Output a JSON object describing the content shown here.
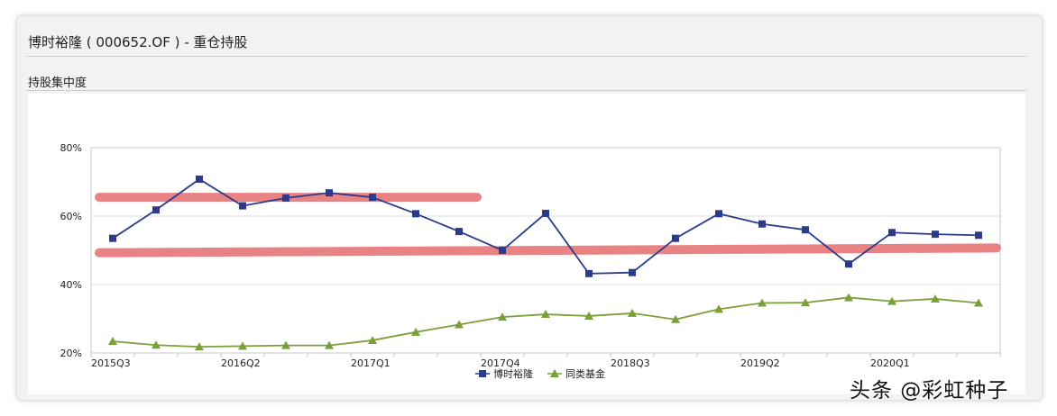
{
  "header": {
    "title": "博时裕隆 ( 000652.OF ) - 重仓持股"
  },
  "section": {
    "title": "持股集中度"
  },
  "watermark": "头条 @彩虹种子",
  "chart_data": {
    "type": "line",
    "x": [
      "2015Q3",
      "2015Q4",
      "2016Q1",
      "2016Q2",
      "2016Q3",
      "2016Q4",
      "2017Q1",
      "2017Q2",
      "2017Q3",
      "2017Q4",
      "2018Q1",
      "2018Q2",
      "2018Q3",
      "2018Q4",
      "2019Q1",
      "2019Q2",
      "2019Q3",
      "2019Q4",
      "2020Q1",
      "2020Q2",
      "2020Q3"
    ],
    "tick_labels": [
      "2015Q3",
      "2016Q2",
      "2017Q1",
      "2017Q4",
      "2018Q3",
      "2019Q2",
      "2020Q1"
    ],
    "y_ticks": [
      "20%",
      "40%",
      "60%",
      "80%"
    ],
    "ylim": [
      20,
      80
    ],
    "series": [
      {
        "name": "博时裕隆",
        "color": "#2b3a8a",
        "marker": "square",
        "values": [
          53.5,
          61.8,
          70.8,
          63.0,
          65.3,
          66.8,
          65.5,
          60.7,
          55.5,
          50.0,
          60.8,
          43.2,
          43.5,
          53.5,
          60.7,
          57.7,
          56.0,
          46.0,
          55.2,
          54.7,
          54.4
        ]
      },
      {
        "name": "同类基金",
        "color": "#7ba03a",
        "marker": "triangle",
        "values": [
          23.4,
          22.3,
          21.8,
          22.0,
          22.2,
          22.2,
          23.7,
          26.1,
          28.3,
          30.5,
          31.3,
          30.8,
          31.6,
          29.8,
          32.8,
          34.6,
          34.7,
          36.2,
          35.1,
          35.8,
          34.6
        ]
      }
    ],
    "annotations": [
      {
        "type": "highlight-bar",
        "color": "#e87878",
        "from_x": "2015Q3",
        "to_x": "2017Q3",
        "y": 65.5
      },
      {
        "type": "highlight-bar",
        "color": "#e87878",
        "from_x": "2015Q3",
        "to_x": "2020Q3",
        "y_start": 49.3,
        "y_end": 50.7
      }
    ],
    "grid": true,
    "legend": "bottom-center"
  }
}
